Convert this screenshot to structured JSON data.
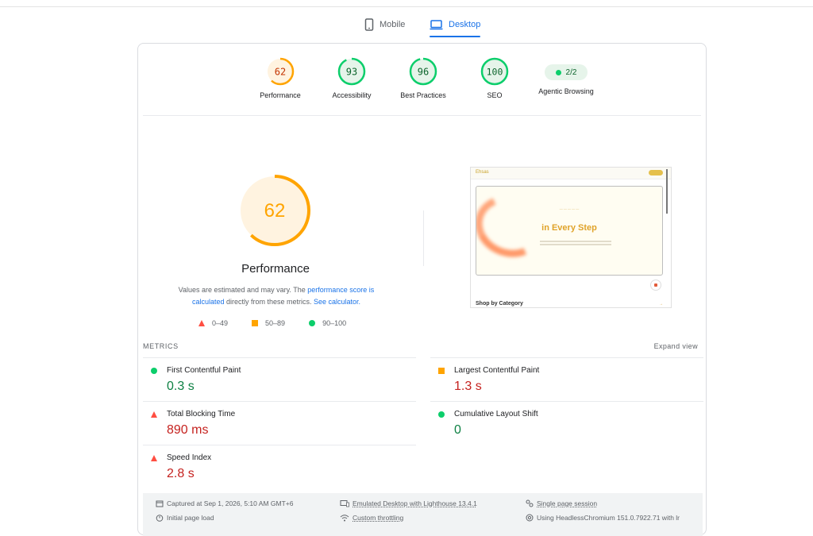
{
  "tabs": {
    "mobile": "Mobile",
    "desktop": "Desktop"
  },
  "categories": [
    {
      "label": "Performance",
      "score": "62",
      "value": 62,
      "status": "average",
      "color": "#ffa400",
      "text_color": "#c33300"
    },
    {
      "label": "Accessibility",
      "score": "93",
      "value": 93,
      "status": "pass",
      "color": "#0cce6b",
      "text_color": "#0d652d"
    },
    {
      "label": "Best Practices",
      "score": "96",
      "value": 96,
      "status": "pass",
      "color": "#0cce6b",
      "text_color": "#0d652d"
    },
    {
      "label": "SEO",
      "score": "100",
      "value": 100,
      "status": "pass",
      "color": "#0cce6b",
      "text_color": "#0d652d"
    },
    {
      "label": "Agentic Browsing",
      "score": "2/2",
      "status": "pass",
      "color": "#0cce6b"
    }
  ],
  "performance": {
    "score": "62",
    "value": 62,
    "title": "Performance",
    "desc_prefix": "Values are estimated and may vary. The ",
    "desc_link1": "performance score is calculated",
    "desc_mid": " directly from these metrics. ",
    "desc_link2": "See calculator.",
    "legend": [
      {
        "icon": "fail-triangle-icon",
        "range": "0–49",
        "color": "#ff4e42"
      },
      {
        "icon": "average-square-icon",
        "range": "50–89",
        "color": "#ffa400"
      },
      {
        "icon": "pass-circle-icon",
        "range": "90–100",
        "color": "#0cce6b"
      }
    ]
  },
  "screenshot": {
    "headline": "in Every Step",
    "section": "Shop by Category"
  },
  "metrics": {
    "header": "METRICS",
    "expand": "Expand view",
    "items": {
      "fcp": {
        "name": "First Contentful Paint",
        "value": "0.3 s",
        "status": "pass"
      },
      "lcp": {
        "name": "Largest Contentful Paint",
        "value": "1.3 s",
        "status": "average"
      },
      "tbt": {
        "name": "Total Blocking Time",
        "value": "890 ms",
        "status": "fail"
      },
      "cls": {
        "name": "Cumulative Layout Shift",
        "value": "0",
        "status": "pass"
      },
      "si": {
        "name": "Speed Index",
        "value": "2.8 s",
        "status": "fail"
      }
    }
  },
  "footer": {
    "captured": "Captured at Sep 1, 2026, 5:10 AM GMT+6",
    "emulated": "Emulated Desktop with Lighthouse 13.4.1",
    "session": "Single page session",
    "initial": "Initial page load",
    "throttling": "Custom throttling",
    "browser": "Using HeadlessChromium 151.0.7922.71 with lr"
  },
  "colors": {
    "accent": "#1a73e8",
    "pass": "#0cce6b",
    "average": "#ffa400",
    "fail": "#ff4e42"
  }
}
